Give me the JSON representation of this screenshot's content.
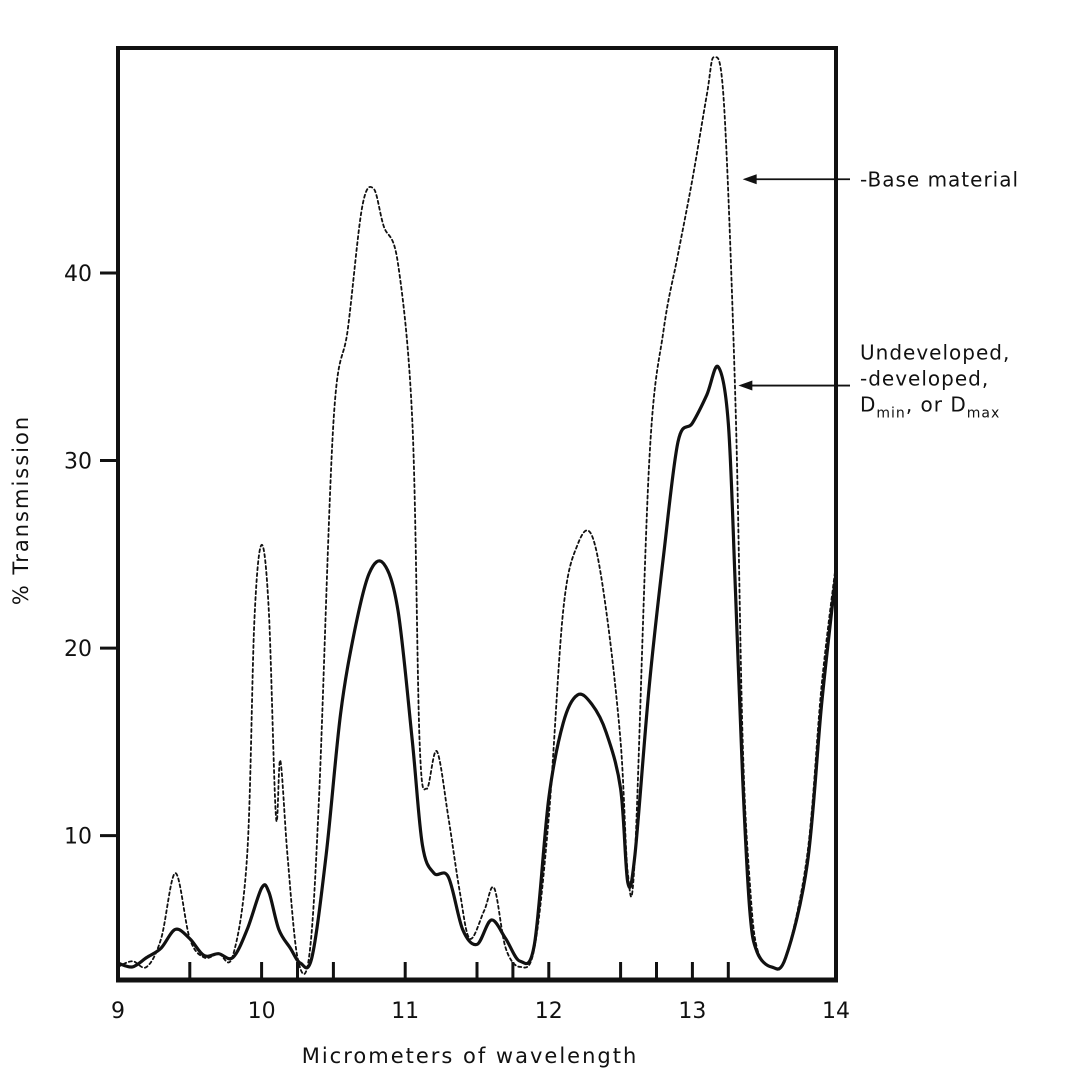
{
  "chart_data": {
    "type": "line",
    "title": "",
    "xlabel": "Micrometers of wavelength",
    "ylabel": "% Transmission",
    "xlim": [
      9,
      14
    ],
    "ylim": [
      2.3,
      52
    ],
    "x_ticks": [
      9,
      10,
      11,
      12,
      13,
      14
    ],
    "x_tick_labels": [
      "9",
      "10",
      "11",
      "12",
      "13",
      "14"
    ],
    "x_minor_ticks": [
      9.5,
      10.25,
      10.5,
      11.5,
      11.75,
      12.5,
      12.75,
      13.25
    ],
    "y_ticks": [
      10,
      20,
      30,
      40
    ],
    "y_tick_labels": [
      "10",
      "20",
      "30",
      "40"
    ],
    "grid": false,
    "series": [
      {
        "key": "base",
        "style": "dotted",
        "annotation": [
          "-Base material"
        ],
        "annotation_anchor": [
          13.35,
          45
        ],
        "points": [
          [
            9.0,
            3.0
          ],
          [
            9.1,
            3.3
          ],
          [
            9.2,
            3.0
          ],
          [
            9.3,
            4.5
          ],
          [
            9.4,
            8.0
          ],
          [
            9.5,
            4.5
          ],
          [
            9.6,
            3.5
          ],
          [
            9.7,
            3.7
          ],
          [
            9.8,
            3.6
          ],
          [
            9.9,
            9.0
          ],
          [
            9.95,
            21.5
          ],
          [
            10.0,
            25.5
          ],
          [
            10.05,
            22.0
          ],
          [
            10.1,
            11.0
          ],
          [
            10.13,
            14.0
          ],
          [
            10.18,
            9.0
          ],
          [
            10.25,
            3.5
          ],
          [
            10.33,
            3.5
          ],
          [
            10.4,
            12.0
          ],
          [
            10.5,
            32.0
          ],
          [
            10.6,
            37.0
          ],
          [
            10.7,
            43.5
          ],
          [
            10.78,
            44.5
          ],
          [
            10.85,
            42.5
          ],
          [
            10.95,
            40.5
          ],
          [
            11.05,
            32.0
          ],
          [
            11.1,
            15.0
          ],
          [
            11.15,
            12.5
          ],
          [
            11.22,
            14.5
          ],
          [
            11.3,
            11.0
          ],
          [
            11.38,
            7.0
          ],
          [
            11.45,
            4.5
          ],
          [
            11.55,
            6.0
          ],
          [
            11.62,
            7.2
          ],
          [
            11.7,
            4.0
          ],
          [
            11.8,
            3.0
          ],
          [
            11.9,
            4.0
          ],
          [
            12.0,
            11.0
          ],
          [
            12.1,
            22.0
          ],
          [
            12.2,
            25.5
          ],
          [
            12.3,
            26.0
          ],
          [
            12.4,
            22.0
          ],
          [
            12.5,
            15.0
          ],
          [
            12.55,
            8.0
          ],
          [
            12.6,
            9.0
          ],
          [
            12.7,
            30.0
          ],
          [
            12.8,
            37.0
          ],
          [
            12.9,
            41.0
          ],
          [
            13.0,
            45.0
          ],
          [
            13.1,
            49.5
          ],
          [
            13.15,
            51.5
          ],
          [
            13.22,
            49.0
          ],
          [
            13.3,
            33.0
          ],
          [
            13.35,
            15.0
          ],
          [
            13.4,
            7.5
          ],
          [
            13.45,
            4.0
          ],
          [
            13.55,
            3.0
          ],
          [
            13.65,
            3.5
          ],
          [
            13.8,
            9.0
          ],
          [
            13.9,
            18.0
          ],
          [
            14.0,
            24.5
          ]
        ]
      },
      {
        "key": "undeveloped",
        "style": "solid",
        "annotation": [
          "Undeveloped,",
          "-developed,",
          "D_min, or D_max"
        ],
        "annotation_anchor": [
          13.32,
          34
        ],
        "points": [
          [
            9.0,
            3.2
          ],
          [
            9.1,
            3.0
          ],
          [
            9.2,
            3.5
          ],
          [
            9.3,
            4.0
          ],
          [
            9.4,
            5.0
          ],
          [
            9.5,
            4.5
          ],
          [
            9.6,
            3.6
          ],
          [
            9.7,
            3.7
          ],
          [
            9.8,
            3.5
          ],
          [
            9.9,
            5.0
          ],
          [
            10.0,
            7.2
          ],
          [
            10.05,
            7.0
          ],
          [
            10.12,
            5.0
          ],
          [
            10.2,
            4.0
          ],
          [
            10.27,
            3.2
          ],
          [
            10.35,
            3.5
          ],
          [
            10.45,
            9.0
          ],
          [
            10.55,
            16.5
          ],
          [
            10.65,
            21.0
          ],
          [
            10.75,
            24.0
          ],
          [
            10.85,
            24.5
          ],
          [
            10.95,
            22.0
          ],
          [
            11.05,
            15.0
          ],
          [
            11.12,
            9.5
          ],
          [
            11.2,
            8.0
          ],
          [
            11.3,
            7.8
          ],
          [
            11.4,
            5.0
          ],
          [
            11.5,
            4.2
          ],
          [
            11.6,
            5.5
          ],
          [
            11.7,
            4.5
          ],
          [
            11.8,
            3.3
          ],
          [
            11.9,
            4.2
          ],
          [
            12.0,
            12.0
          ],
          [
            12.1,
            16.0
          ],
          [
            12.2,
            17.5
          ],
          [
            12.3,
            17.0
          ],
          [
            12.4,
            15.5
          ],
          [
            12.5,
            12.5
          ],
          [
            12.55,
            7.5
          ],
          [
            12.6,
            9.0
          ],
          [
            12.7,
            18.0
          ],
          [
            12.8,
            25.0
          ],
          [
            12.9,
            31.0
          ],
          [
            13.0,
            32.0
          ],
          [
            13.1,
            33.5
          ],
          [
            13.18,
            35.0
          ],
          [
            13.25,
            32.0
          ],
          [
            13.3,
            23.0
          ],
          [
            13.35,
            13.0
          ],
          [
            13.4,
            6.0
          ],
          [
            13.45,
            3.8
          ],
          [
            13.55,
            3.0
          ],
          [
            13.65,
            3.5
          ],
          [
            13.8,
            8.5
          ],
          [
            13.9,
            17.0
          ],
          [
            14.0,
            24.0
          ]
        ]
      }
    ]
  }
}
